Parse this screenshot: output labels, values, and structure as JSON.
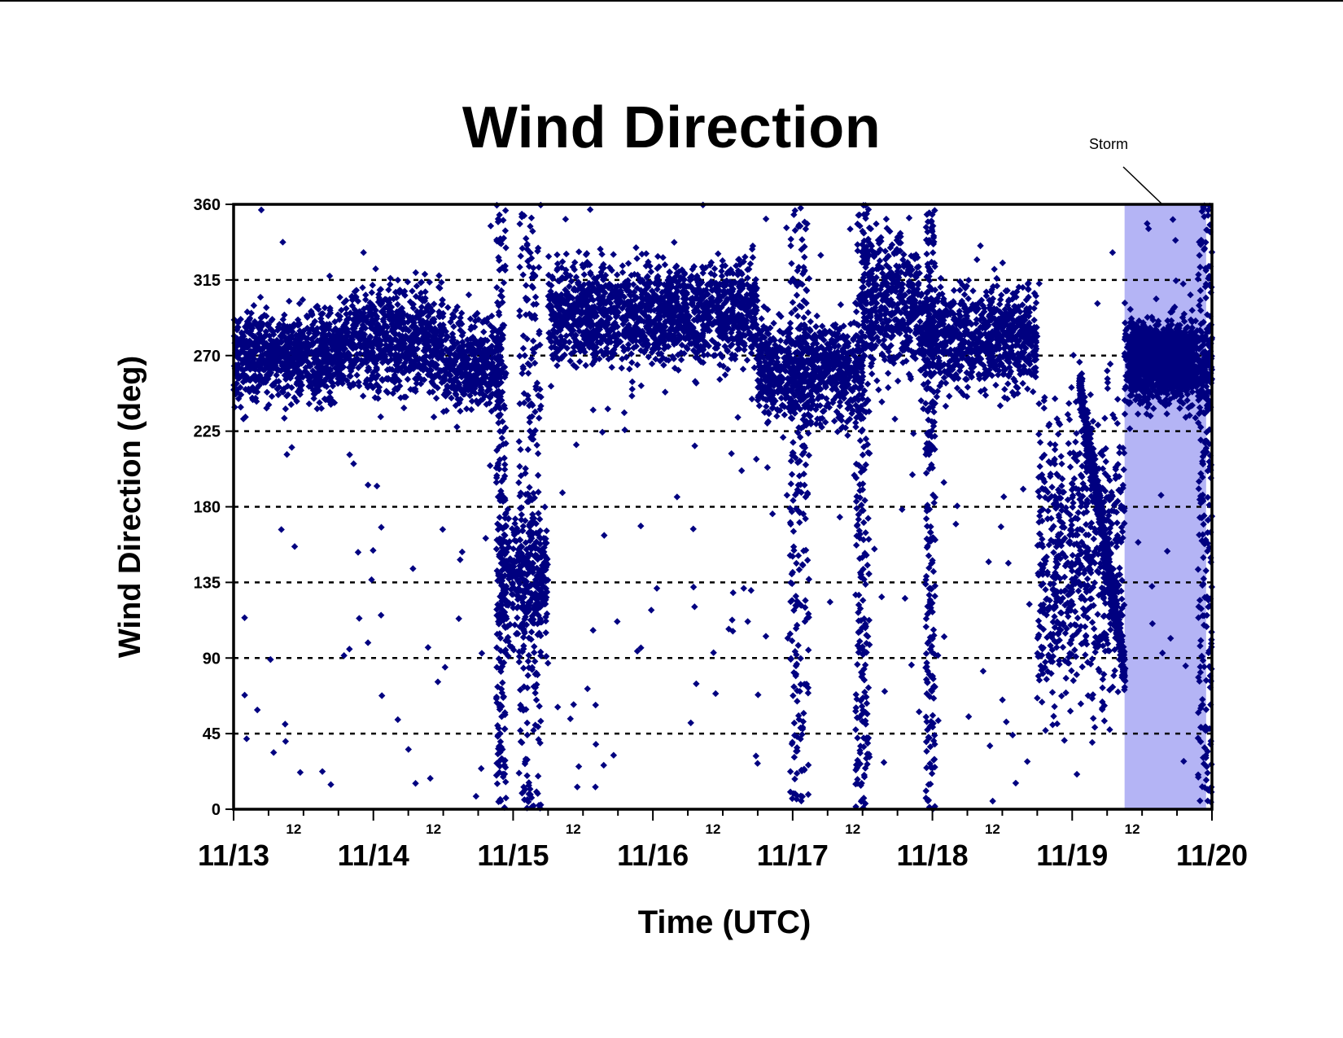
{
  "chart_data": {
    "type": "scatter",
    "title": "Wind Direction",
    "xlabel": "Time (UTC)",
    "ylabel": "Wind Direction (deg)",
    "ylim": [
      0,
      360
    ],
    "yticks": [
      0,
      45,
      90,
      135,
      180,
      225,
      270,
      315,
      360
    ],
    "xlim_days": [
      "11/13",
      "11/20"
    ],
    "x_major_labels": [
      "11/13",
      "11/14",
      "11/15",
      "11/16",
      "11/17",
      "11/18",
      "11/19",
      "11/20"
    ],
    "x_minor_label": "12",
    "grid": "horizontal dashed at y ticks 45 through 315",
    "marker": "diamond",
    "series": [
      {
        "color": "#000080",
        "description_segments": [
          {
            "from": "11/13 00",
            "to": "11/13 19",
            "center": 270,
            "spread": 25
          },
          {
            "from": "11/13 19",
            "to": "11/14 12",
            "center": 280,
            "spread": 30
          },
          {
            "from": "11/14 12",
            "to": "11/14 22",
            "center": 265,
            "spread": 25
          },
          {
            "from": "11/14 22",
            "to": "11/15 06",
            "center": 140,
            "spread": 40
          },
          {
            "from": "11/15 06",
            "to": "11/16 18",
            "center": 295,
            "spread": 28
          },
          {
            "from": "11/16 18",
            "to": "11/17 12",
            "center": 260,
            "spread": 28
          },
          {
            "from": "11/17 12",
            "to": "11/17 22",
            "center": 300,
            "spread": 40
          },
          {
            "from": "11/17 22",
            "to": "11/18 18",
            "center": 280,
            "spread": 28
          },
          {
            "from": "11/18 18",
            "to": "11/19 09",
            "center": 150,
            "spread": 80
          },
          {
            "from": "11/19 09",
            "to": "11/20 00",
            "center": 265,
            "spread": 25
          }
        ]
      }
    ],
    "highlight": {
      "label": "Storm",
      "from": "11/19 09",
      "to": "11/19 23",
      "color": "#b4b4f5"
    }
  }
}
